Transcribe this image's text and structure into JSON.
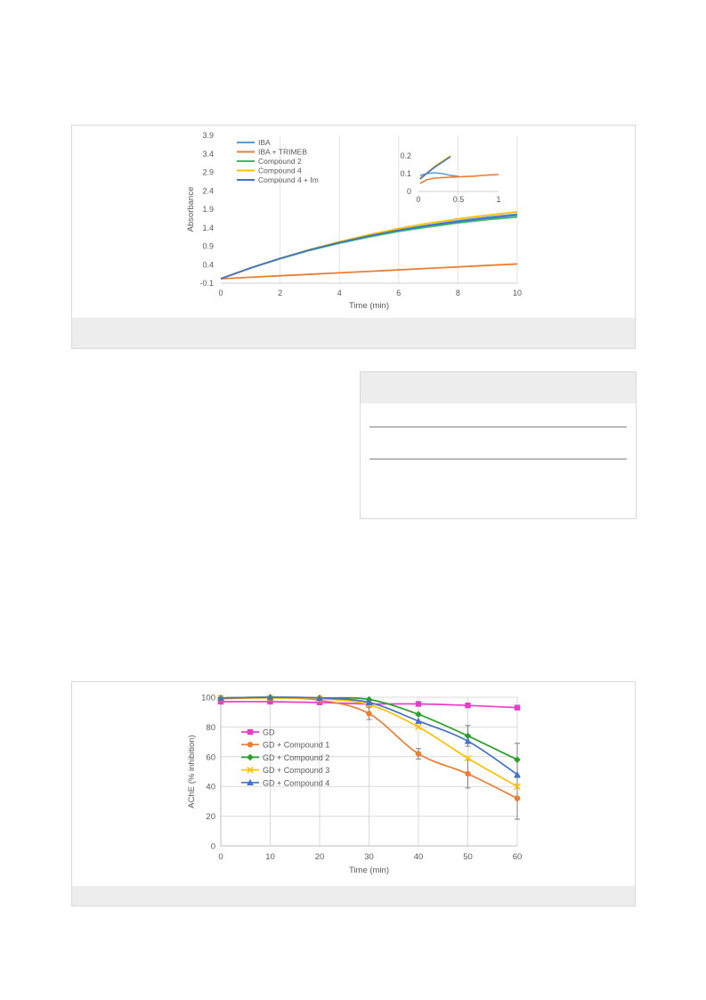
{
  "chart_data": [
    {
      "type": "line",
      "title": "",
      "xlabel": "Time (min)",
      "ylabel": "Absorbance",
      "xlim": [
        0,
        10
      ],
      "ylim": [
        -0.1,
        3.9
      ],
      "xticks": [
        0,
        2,
        4,
        6,
        8,
        10
      ],
      "yticks": [
        -0.1,
        0.4,
        0.9,
        1.4,
        1.9,
        2.4,
        2.9,
        3.4,
        3.9
      ],
      "grid": "vertical",
      "legend": "top-left",
      "x": [
        0,
        1,
        2,
        3,
        4,
        5,
        6,
        7,
        8,
        9,
        10
      ],
      "series": [
        {
          "name": "IBA",
          "color": "#5b9bd5",
          "values": [
            0.02,
            0.31,
            0.57,
            0.8,
            1.0,
            1.18,
            1.34,
            1.47,
            1.59,
            1.69,
            1.77
          ]
        },
        {
          "name": "IBA + TRIMEB",
          "color": "#ed7d31",
          "values": [
            0.02,
            0.06,
            0.1,
            0.14,
            0.18,
            0.22,
            0.26,
            0.3,
            0.34,
            0.38,
            0.42
          ]
        },
        {
          "name": "Compound 2",
          "color": "#3cba6a",
          "values": [
            0.02,
            0.31,
            0.56,
            0.79,
            0.98,
            1.15,
            1.3,
            1.42,
            1.53,
            1.62,
            1.69
          ]
        },
        {
          "name": "Compound 4",
          "color": "#ffc000",
          "values": [
            0.02,
            0.31,
            0.57,
            0.81,
            1.02,
            1.21,
            1.38,
            1.52,
            1.64,
            1.74,
            1.83
          ]
        },
        {
          "name": "Compound 4 + Im",
          "color": "#4472c4",
          "values": [
            0.02,
            0.31,
            0.57,
            0.8,
            1.0,
            1.18,
            1.33,
            1.46,
            1.57,
            1.66,
            1.74
          ]
        }
      ],
      "inset": {
        "xlim": [
          0,
          1
        ],
        "ylim": [
          0,
          0.2
        ],
        "xticks": [
          0,
          0.5,
          1
        ],
        "xtick_labels": [
          "0",
          "0.5",
          "1"
        ],
        "yticks": [
          0,
          0.1,
          0.2
        ],
        "ytick_labels": [
          "0",
          "0.1",
          "0.2"
        ],
        "series": [
          {
            "name": "IBA",
            "color": "#5b9bd5",
            "x": [
              0.02,
              0.1,
              0.2,
              0.3,
              0.4,
              0.5
            ],
            "values": [
              0.09,
              0.1,
              0.105,
              0.1,
              0.09,
              0.085
            ]
          },
          {
            "name": "IBA + TRIMEB",
            "color": "#ed7d31",
            "x": [
              0.02,
              0.1,
              0.2,
              0.3,
              0.4,
              0.5,
              0.6,
              0.7,
              0.8,
              0.9,
              1.0
            ],
            "values": [
              0.045,
              0.065,
              0.075,
              0.078,
              0.08,
              0.082,
              0.084,
              0.086,
              0.09,
              0.093,
              0.095
            ]
          },
          {
            "name": "Compound 2",
            "color": "#3cba6a",
            "x": [
              0.02,
              0.1,
              0.2,
              0.3,
              0.4
            ],
            "values": [
              0.075,
              0.1,
              0.14,
              0.17,
              0.2
            ]
          },
          {
            "name": "Compound 4",
            "color": "#ffc000",
            "x": [
              0.02,
              0.1,
              0.2,
              0.3,
              0.4
            ],
            "values": [
              0.075,
              0.1,
              0.14,
              0.17,
              0.2
            ]
          },
          {
            "name": "Compound 4 + Im",
            "color": "#4472c4",
            "x": [
              0.02,
              0.1,
              0.2,
              0.3,
              0.4
            ],
            "values": [
              0.07,
              0.1,
              0.135,
              0.165,
              0.195
            ]
          }
        ]
      }
    },
    {
      "type": "line",
      "title": "",
      "xlabel": "Time (min)",
      "ylabel": "AChE (% inhibition)",
      "xlim": [
        0,
        60
      ],
      "ylim": [
        0,
        100
      ],
      "xticks": [
        0,
        10,
        20,
        30,
        40,
        50,
        60
      ],
      "yticks": [
        0,
        20,
        40,
        60,
        80,
        100
      ],
      "grid": "both",
      "legend": "left",
      "x": [
        0,
        10,
        20,
        30,
        40,
        50,
        60
      ],
      "series": [
        {
          "name": "GD",
          "color": "#e83ec8",
          "marker": "square",
          "values": [
            97,
            97,
            96.5,
            95.5,
            95.5,
            94.5,
            93
          ]
        },
        {
          "name": "GD + Compound 1",
          "color": "#ed7d31",
          "marker": "circle",
          "values": [
            99,
            99.5,
            98,
            89,
            62,
            48.5,
            32
          ],
          "errors": [
            0,
            0,
            0,
            4,
            3.5,
            9.5,
            14
          ]
        },
        {
          "name": "GD + Compound 2",
          "color": "#2ca02c",
          "marker": "diamond",
          "values": [
            99.5,
            100,
            99.5,
            98.5,
            88.5,
            74,
            58
          ],
          "errors": [
            0,
            0,
            0,
            0,
            0,
            7,
            11
          ]
        },
        {
          "name": "GD + Compound 3",
          "color": "#ffc000",
          "marker": "x",
          "values": [
            99.5,
            99.5,
            99,
            95,
            80,
            59,
            40
          ],
          "errors": [
            0,
            0,
            0,
            0,
            0,
            0,
            0
          ]
        },
        {
          "name": "GD + Compound 4",
          "color": "#4472c4",
          "marker": "triangle",
          "values": [
            99.5,
            100,
            99.5,
            96.5,
            84,
            70.5,
            48
          ],
          "errors": [
            0,
            0,
            0,
            0,
            0,
            0,
            0
          ]
        }
      ]
    }
  ]
}
